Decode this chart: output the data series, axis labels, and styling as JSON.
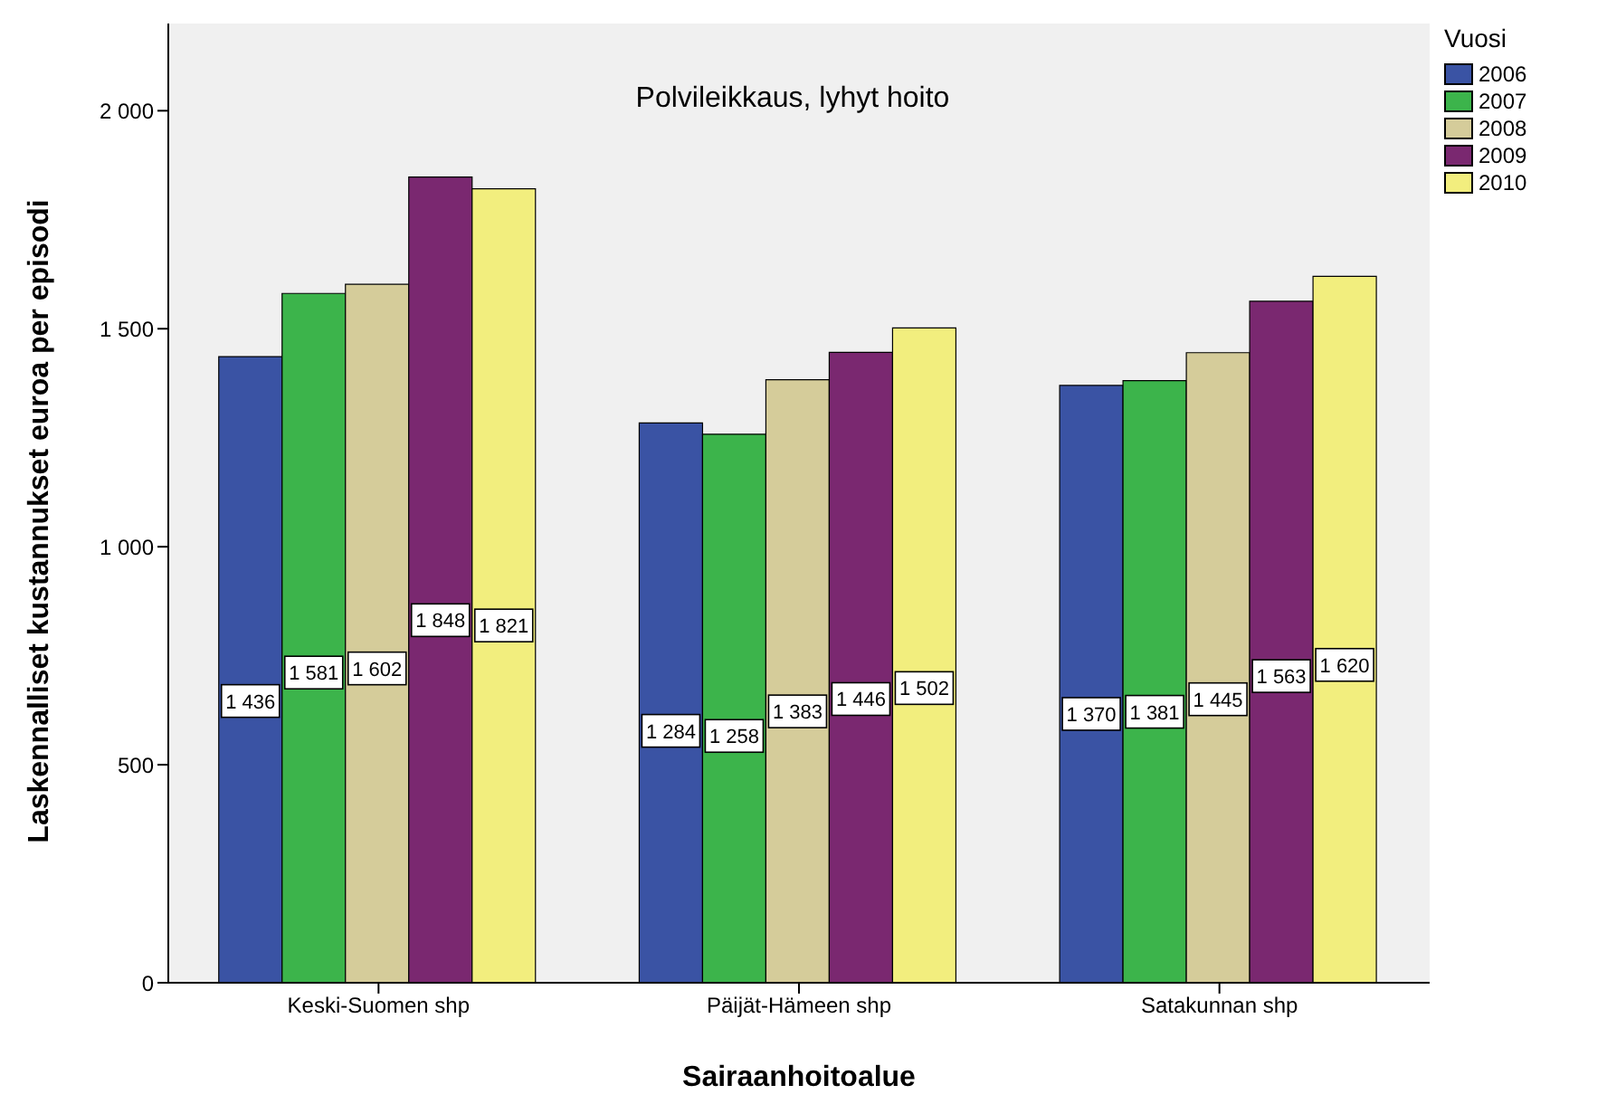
{
  "chart_data": {
    "type": "bar",
    "title": "Polvileikkaus, lyhyt hoito",
    "xlabel": "Sairaanhoitoalue",
    "ylabel": "Laskennalliset kustannukset euroa per episodi",
    "legend_title": "Vuosi",
    "categories": [
      "Keski-Suomen shp",
      "Päijät-Hämeen shp",
      "Satakunnan shp"
    ],
    "series": [
      {
        "name": "2006",
        "color": "#3a53a4",
        "values": [
          1436,
          1284,
          1370
        ]
      },
      {
        "name": "2007",
        "color": "#3cb44b",
        "values": [
          1581,
          1258,
          1381
        ]
      },
      {
        "name": "2008",
        "color": "#d5cc9a",
        "values": [
          1602,
          1383,
          1445
        ]
      },
      {
        "name": "2009",
        "color": "#7a2870",
        "values": [
          1848,
          1446,
          1563
        ]
      },
      {
        "name": "2010",
        "color": "#f2ee7e",
        "values": [
          1821,
          1502,
          1620
        ]
      }
    ],
    "ylim": [
      0,
      2200
    ],
    "yticks": [
      0,
      500,
      {
        "value": 1000,
        "label": "1 000"
      },
      {
        "value": 1500,
        "label": "1 500"
      },
      {
        "value": 2000,
        "label": "2 000"
      }
    ],
    "data_labels": true,
    "grid": false,
    "legend": "top right"
  }
}
